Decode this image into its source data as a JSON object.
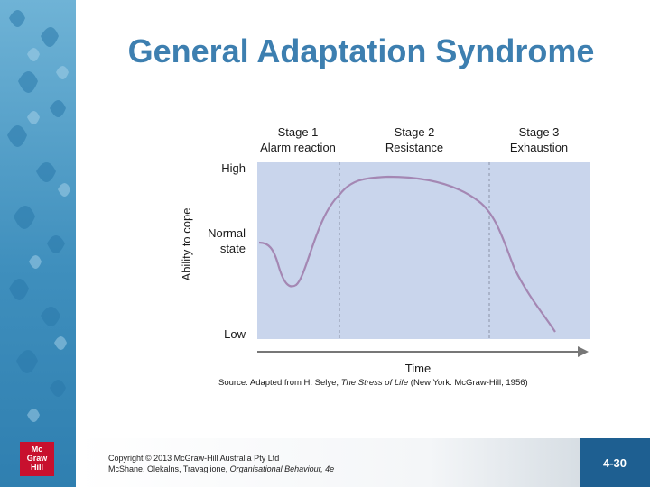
{
  "slide": {
    "title": "General Adaptation Syndrome",
    "number": "4-30"
  },
  "logo": {
    "lines": [
      "Mc",
      "Graw",
      "Hill"
    ]
  },
  "footer": {
    "copyright_line": "Copyright © 2013 McGraw-Hill Australia Pty Ltd",
    "authors": "McShane, Olekalns, Travaglione, ",
    "book": "Organisational Behaviour, 4e"
  },
  "diagram": {
    "stages": [
      {
        "name": "Stage 1",
        "label": "Alarm reaction"
      },
      {
        "name": "Stage 2",
        "label": "Resistance"
      },
      {
        "name": "Stage 3",
        "label": "Exhaustion"
      }
    ],
    "y_axis_label": "Ability to cope",
    "y_levels": {
      "high": "High",
      "normal_1": "Normal",
      "normal_2": "state",
      "low": "Low"
    },
    "x_axis_label": "Time",
    "source_prefix": "Source: Adapted from H. Selye, ",
    "source_title": "The Stress of Life",
    "source_suffix": " (New York: McGraw-Hill, 1956)",
    "colors": {
      "panel": "#c9d5ec",
      "curve": "#a487b3",
      "arrow": "#777777"
    }
  }
}
